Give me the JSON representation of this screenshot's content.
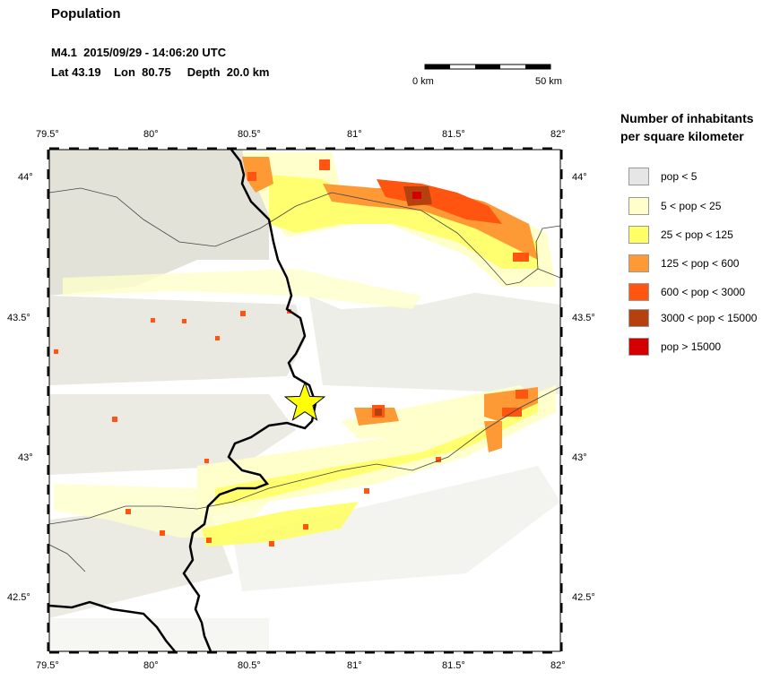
{
  "header": {
    "title": "Population",
    "event_line": "M4.1  2015/09/29 - 14:06:20 UTC",
    "location_line": "Lat 43.19    Lon  80.75     Depth  20.0 km"
  },
  "scale_bar": {
    "start_label": "0 km",
    "end_label": "50 km"
  },
  "axes": {
    "lon_ticks": [
      "79.5°",
      "80°",
      "80.5°",
      "81°",
      "81.5°",
      "82°"
    ],
    "lat_ticks": [
      "44°",
      "43.5°",
      "43°",
      "42.5°"
    ],
    "lon_range": [
      79.5,
      82.0
    ],
    "lat_range": [
      42.3,
      44.1
    ]
  },
  "epicenter": {
    "lat": 43.19,
    "lon": 80.75,
    "marker": "star-icon",
    "color": "#ffff00"
  },
  "legend": {
    "title_line1": "Number of inhabitants",
    "title_line2": "per square kilometer",
    "items": [
      {
        "label": "pop < 5",
        "color": "#e6e6e6"
      },
      {
        "label": "5 < pop < 25",
        "color": "#ffffcc"
      },
      {
        "label": "25 < pop < 125",
        "color": "#ffff66"
      },
      {
        "label": "125 < pop < 600",
        "color": "#fd9a35"
      },
      {
        "label": "600 < pop < 3000",
        "color": "#ff5511"
      },
      {
        "label": "3000 < pop < 15000",
        "color": "#b5420e"
      },
      {
        "label": "pop > 15000",
        "color": "#d40000"
      }
    ]
  }
}
